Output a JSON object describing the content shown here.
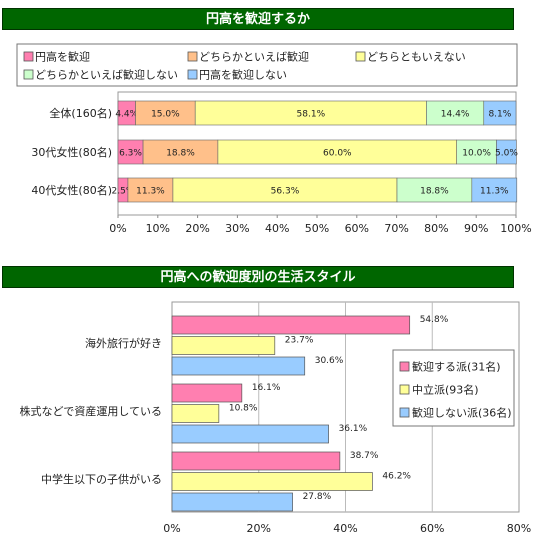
{
  "chart_data": [
    {
      "type": "bar",
      "orientation": "horizontal",
      "stacked": true,
      "percent": true,
      "title": "円高を歓迎するか",
      "categories": [
        "全体(160名)",
        "30代女性(80名)",
        "40代女性(80名)"
      ],
      "series": [
        {
          "name": "円高を歓迎",
          "values": [
            4.4,
            6.3,
            2.5
          ],
          "labels": [
            "4.4%",
            "6.3%",
            "2.5%"
          ],
          "color": "#ff7fb0"
        },
        {
          "name": "どちらかといえば歓迎",
          "values": [
            15.0,
            18.8,
            11.3
          ],
          "labels": [
            "15.0%",
            "18.8%",
            "11.3%"
          ],
          "color": "#ffc08a"
        },
        {
          "name": "どちらともいえない",
          "values": [
            58.1,
            60.0,
            56.3
          ],
          "labels": [
            "58.1%",
            "60.0%",
            "56.3%"
          ],
          "color": "#ffff99"
        },
        {
          "name": "どちらかといえば歓迎しない",
          "values": [
            14.4,
            10.0,
            18.8
          ],
          "labels": [
            "14.4%",
            "10.0%",
            "18.8%"
          ],
          "color": "#ccffcc"
        },
        {
          "name": "円高を歓迎しない",
          "values": [
            8.1,
            5.0,
            11.3
          ],
          "labels": [
            "8.1%",
            "5.0%",
            "11.3%"
          ],
          "color": "#99ccff"
        }
      ],
      "xlim": [
        0,
        100
      ],
      "xticks": [
        "0%",
        "10%",
        "20%",
        "30%",
        "40%",
        "50%",
        "60%",
        "70%",
        "80%",
        "90%",
        "100%"
      ],
      "legend_position": "top",
      "grid": false
    },
    {
      "type": "bar",
      "orientation": "horizontal",
      "title": "円高への歓迎度別の生活スタイル",
      "categories": [
        "海外旅行が好き",
        "株式などで資産運用している",
        "中学生以下の子供がいる"
      ],
      "series": [
        {
          "name": "歓迎する派(31名)",
          "values": [
            54.8,
            16.1,
            38.7
          ],
          "labels": [
            "54.8%",
            "16.1%",
            "38.7%"
          ],
          "color": "#ff7fb0"
        },
        {
          "name": "中立派(93名)",
          "values": [
            23.7,
            10.8,
            46.2
          ],
          "labels": [
            "23.7%",
            "10.8%",
            "46.2%"
          ],
          "color": "#ffff99"
        },
        {
          "name": "歓迎しない派(36名)",
          "values": [
            30.6,
            36.1,
            27.8
          ],
          "labels": [
            "30.6%",
            "36.1%",
            "27.8%"
          ],
          "color": "#99ccff"
        }
      ],
      "xlim": [
        0,
        80
      ],
      "xticks": [
        "0%",
        "20%",
        "40%",
        "60%",
        "80%"
      ],
      "legend_position": "right",
      "grid": true
    }
  ]
}
